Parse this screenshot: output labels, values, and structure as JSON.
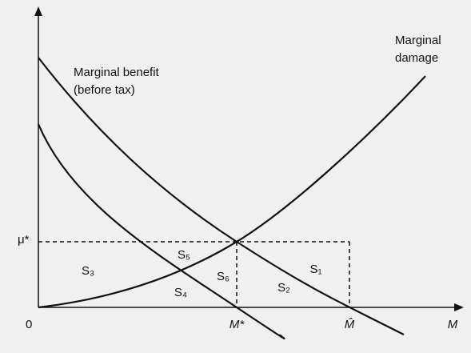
{
  "labels": {
    "marginal_benefit": [
      "Marginal benefit",
      "(before tax)"
    ],
    "marginal_damage": [
      "Marginal",
      "damage"
    ],
    "mu_star": "μ*",
    "origin": "0",
    "m_star": "M*",
    "m_hat": "M̂",
    "m_axis": "M"
  },
  "regions": [
    "S₁",
    "S₂",
    "S₃",
    "S₄",
    "S₅",
    "S₆"
  ]
}
